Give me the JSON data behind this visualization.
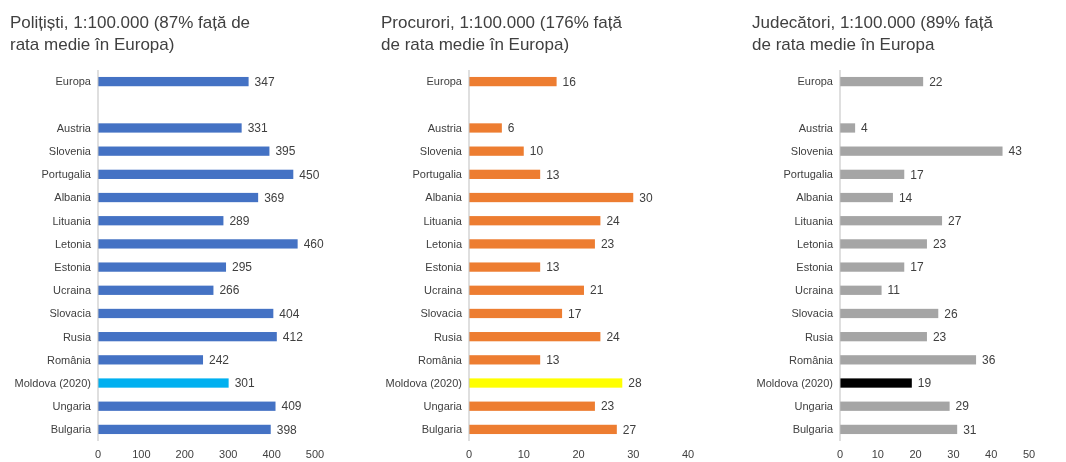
{
  "chart_data": [
    {
      "type": "bar",
      "orientation": "horizontal",
      "title": "Polițiști, 1:100.000 (87% față de rata medie în Europa)",
      "categories": [
        "Europa",
        null,
        "Austria",
        "Slovenia",
        "Portugalia",
        "Albania",
        "Lituania",
        "Letonia",
        "Estonia",
        "Ucraina",
        "Slovacia",
        "Rusia",
        "România",
        "Moldova (2020)",
        "Ungaria",
        "Bulgaria"
      ],
      "values": [
        347,
        null,
        331,
        395,
        450,
        369,
        289,
        460,
        295,
        266,
        404,
        412,
        242,
        301,
        409,
        398
      ],
      "colors": [
        "#4472c4",
        null,
        "#4472c4",
        "#4472c4",
        "#4472c4",
        "#4472c4",
        "#4472c4",
        "#4472c4",
        "#4472c4",
        "#4472c4",
        "#4472c4",
        "#4472c4",
        "#4472c4",
        "#00b0f0",
        "#4472c4",
        "#4472c4"
      ],
      "xlim": [
        0,
        500
      ],
      "xticks": [
        0,
        100,
        200,
        300,
        400,
        500
      ],
      "data_labels": true
    },
    {
      "type": "bar",
      "orientation": "horizontal",
      "title": "Procurori, 1:100.000 (176% față de rata medie în Europa)",
      "categories": [
        "Europa",
        null,
        "Austria",
        "Slovenia",
        "Portugalia",
        "Albania",
        "Lituania",
        "Letonia",
        "Estonia",
        "Ucraina",
        "Slovacia",
        "Rusia",
        "România",
        "Moldova (2020)",
        "Ungaria",
        "Bulgaria"
      ],
      "values": [
        16,
        null,
        6,
        10,
        13,
        30,
        24,
        23,
        13,
        21,
        17,
        24,
        13,
        28,
        23,
        27
      ],
      "colors": [
        "#ed7d31",
        null,
        "#ed7d31",
        "#ed7d31",
        "#ed7d31",
        "#ed7d31",
        "#ed7d31",
        "#ed7d31",
        "#ed7d31",
        "#ed7d31",
        "#ed7d31",
        "#ed7d31",
        "#ed7d31",
        "#ffff00",
        "#ed7d31",
        "#ed7d31"
      ],
      "xlim": [
        0,
        40
      ],
      "xticks": [
        0,
        10,
        20,
        30,
        40
      ],
      "data_labels": true
    },
    {
      "type": "bar",
      "orientation": "horizontal",
      "title": "Judecători, 1:100.000 (89% față de rata medie în Europa",
      "categories": [
        "Europa",
        null,
        "Austria",
        "Slovenia",
        "Portugalia",
        "Albania",
        "Lituania",
        "Letonia",
        "Estonia",
        "Ucraina",
        "Slovacia",
        "Rusia",
        "România",
        "Moldova (2020)",
        "Ungaria",
        "Bulgaria"
      ],
      "values": [
        22,
        null,
        4,
        43,
        17,
        14,
        27,
        23,
        17,
        11,
        26,
        23,
        36,
        19,
        29,
        31
      ],
      "colors": [
        "#a5a5a5",
        null,
        "#a5a5a5",
        "#a5a5a5",
        "#a5a5a5",
        "#a5a5a5",
        "#a5a5a5",
        "#a5a5a5",
        "#a5a5a5",
        "#a5a5a5",
        "#a5a5a5",
        "#a5a5a5",
        "#a5a5a5",
        "#000000",
        "#a5a5a5",
        "#a5a5a5"
      ],
      "xlim": [
        0,
        50
      ],
      "xticks": [
        0,
        10,
        20,
        30,
        40,
        50
      ],
      "data_labels": true
    }
  ]
}
